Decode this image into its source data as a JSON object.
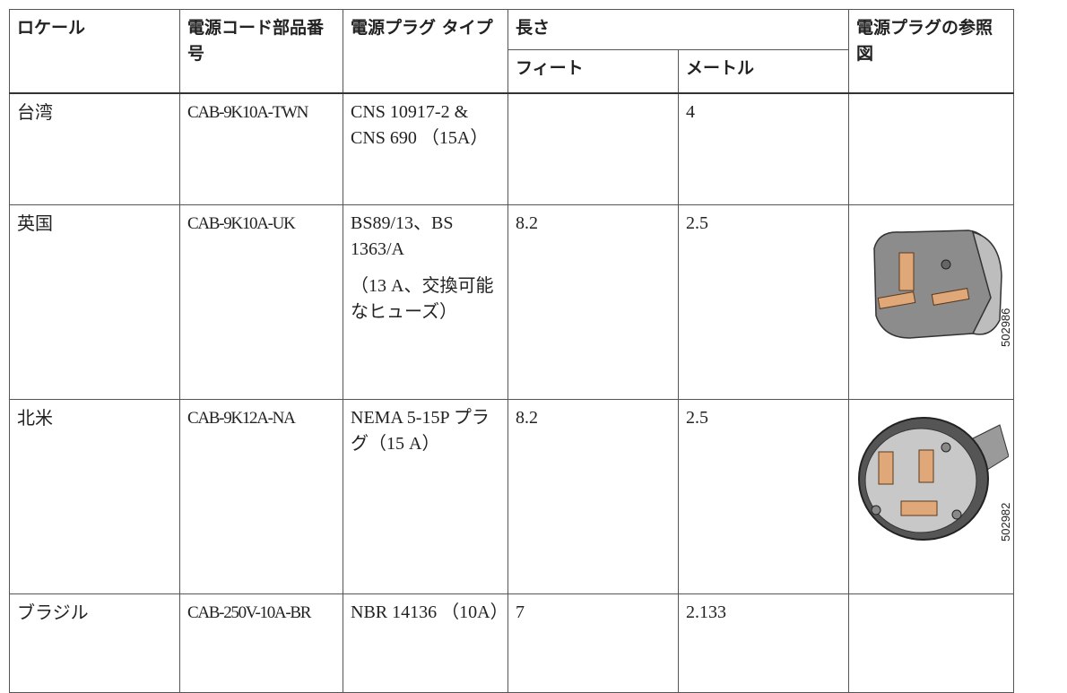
{
  "table": {
    "header": {
      "locale": "ロケール",
      "part_number": "電源コード部品番号",
      "plug_type": "電源プラグ タイプ",
      "length": "長さ",
      "feet": "フィート",
      "meters": "メートル",
      "reference": "電源プラグの参照図"
    },
    "rows": [
      {
        "locale": "台湾",
        "part_number": "CAB-9K10A-TWN",
        "plug_type": [
          "CNS 10917-2 & CNS 690 （15A）"
        ],
        "meters": "4"
      },
      {
        "locale": "英国",
        "part_number": "CAB-9K10A-UK",
        "plug_type": [
          "BS89/13、BS 1363/A",
          "（13 A、交換可能なヒューズ）"
        ],
        "feet": "8.2",
        "meters": "2.5",
        "figure": "502986"
      },
      {
        "locale": "北米",
        "part_number": "CAB-9K12A-NA",
        "plug_type": [
          "NEMA 5-15P プラグ（15 A）"
        ],
        "feet": "8.2",
        "meters": "2.5",
        "figure": "502982"
      },
      {
        "locale": "ブラジル",
        "part_number": "CAB-250V-10A-BR",
        "plug_type": [
          "NBR 14136 （10A）"
        ],
        "feet": "7",
        "meters": "2.133"
      }
    ]
  }
}
